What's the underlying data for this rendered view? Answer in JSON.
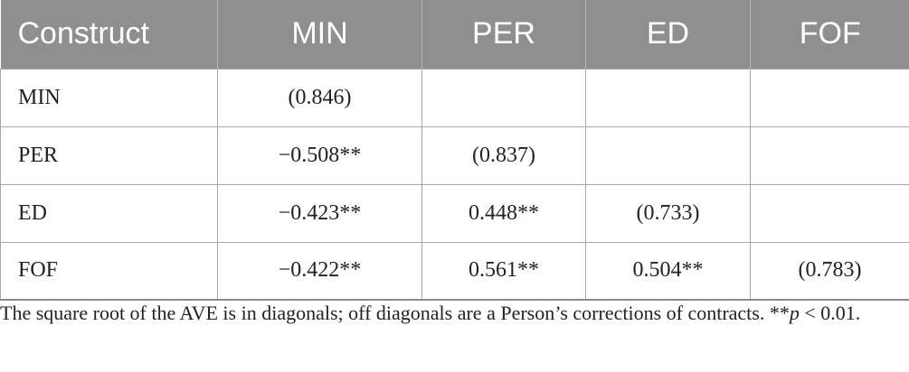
{
  "table": {
    "header": [
      "Construct",
      "MIN",
      "PER",
      "ED",
      "FOF"
    ],
    "rows": [
      {
        "construct": "MIN",
        "cells": [
          "(0.846)",
          "",
          "",
          ""
        ]
      },
      {
        "construct": "PER",
        "cells": [
          "−0.508**",
          "(0.837)",
          "",
          ""
        ]
      },
      {
        "construct": "ED",
        "cells": [
          "−0.423**",
          "0.448**",
          "(0.733)",
          ""
        ]
      },
      {
        "construct": "FOF",
        "cells": [
          "−0.422**",
          "0.561**",
          "0.504**",
          "(0.783)"
        ]
      }
    ]
  },
  "note": {
    "text_before": "The square root of the AVE is in diagonals; off diagonals are a Person’s corrections of contracts. **",
    "p_symbol": "p",
    "text_after": " < 0.01."
  },
  "colors": {
    "header_bg": "#8f8f8f",
    "header_text": "#ffffff",
    "grid_line": "#a8a8a8",
    "body_text": "#222222"
  }
}
